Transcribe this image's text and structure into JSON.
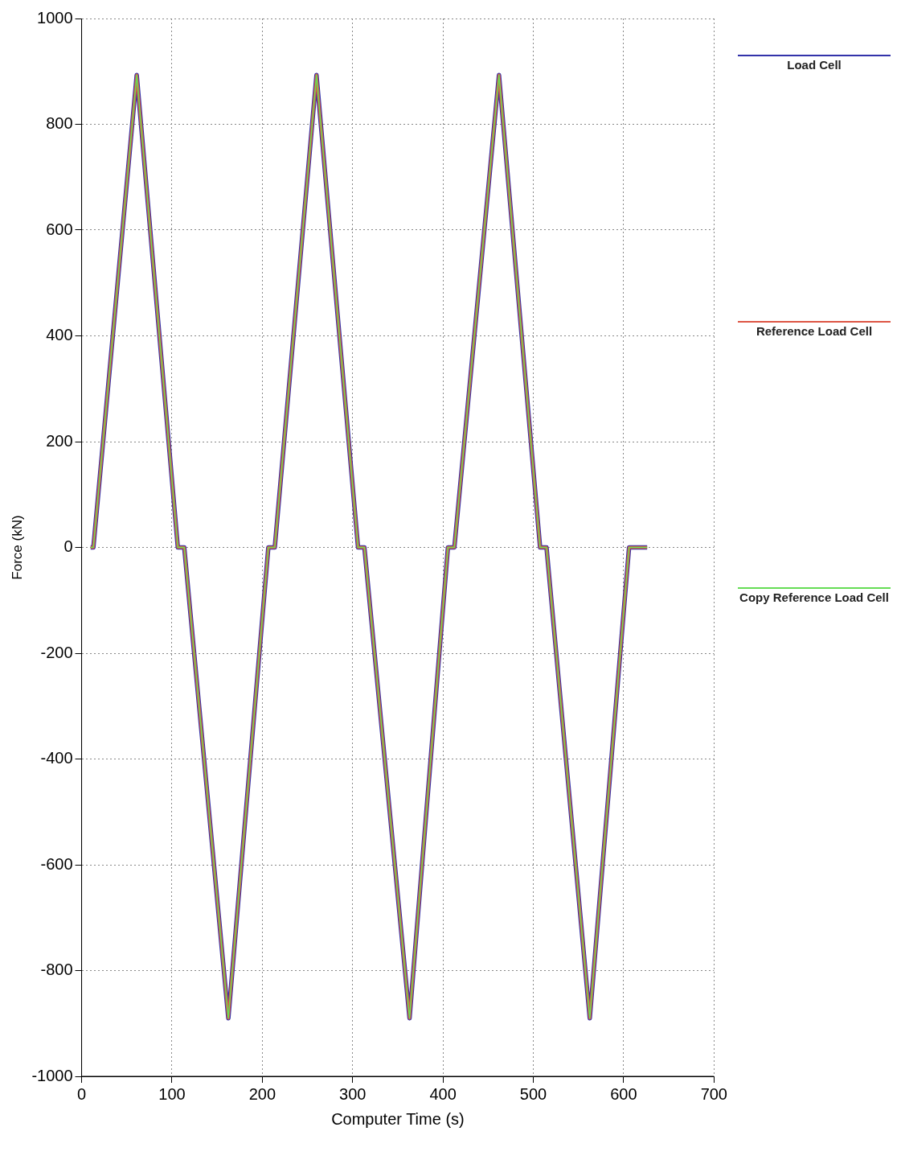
{
  "chart_data": {
    "type": "line",
    "xlabel": "Computer Time (s)",
    "ylabel": "Force (kN)",
    "x": [
      10,
      13,
      61,
      106.5,
      113.6,
      162.4,
      206.7,
      213.8,
      260,
      306,
      313,
      363,
      405.5,
      412.6,
      462,
      507.5,
      514.6,
      562.5,
      606,
      626
    ],
    "series": [
      {
        "name": "Load Cell",
        "color": "#3333aa",
        "values": [
          0,
          0,
          893,
          0,
          0,
          -890,
          0,
          0,
          893,
          0,
          0,
          -890,
          0,
          0,
          893,
          0,
          0,
          -890,
          0,
          0
        ]
      },
      {
        "name": "Reference Load Cell",
        "color": "#dd5544",
        "values": [
          0,
          0,
          893,
          0,
          0,
          -890,
          0,
          0,
          893,
          0,
          0,
          -890,
          0,
          0,
          893,
          0,
          0,
          -890,
          0,
          0
        ]
      },
      {
        "name": "Copy Reference Load Cell",
        "color": "#66dd55",
        "values": [
          0,
          0,
          893,
          0,
          0,
          -890,
          0,
          0,
          893,
          0,
          0,
          -890,
          0,
          0,
          893,
          0,
          0,
          -890,
          0,
          0
        ]
      }
    ],
    "xlim": [
      0,
      700
    ],
    "xticks": [
      0,
      100,
      200,
      300,
      400,
      500,
      600,
      700
    ],
    "ylim": [
      -1000,
      1000
    ],
    "yticks": [
      -1000,
      -800,
      -600,
      -400,
      -200,
      0,
      200,
      400,
      600,
      800,
      1000
    ],
    "grid": true,
    "legend": "right",
    "marker": "none",
    "line_style": "solid"
  }
}
